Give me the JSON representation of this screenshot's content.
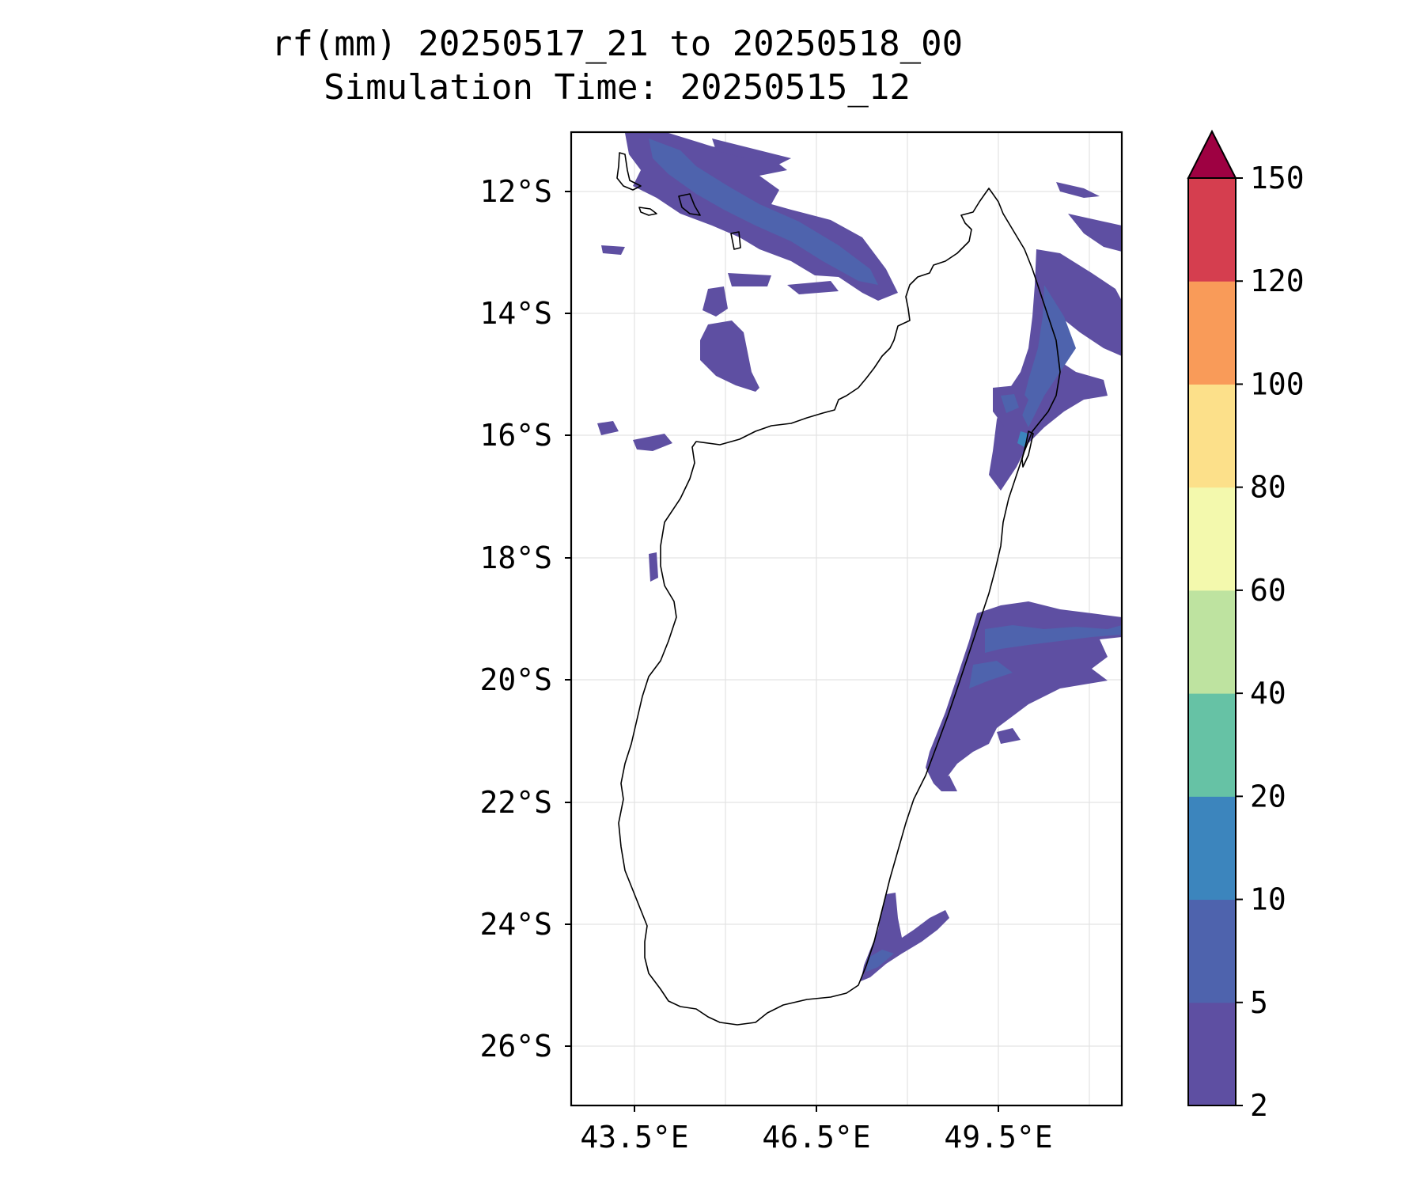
{
  "title": {
    "line1": "rf(mm) 20250517_21 to 20250518_00",
    "line2": "Simulation Time: 20250515_12"
  },
  "map": {
    "lat_labels": [
      "12°S",
      "14°S",
      "16°S",
      "18°S",
      "20°S",
      "22°S",
      "24°S",
      "26°S"
    ],
    "lon_labels": [
      "43.5°E",
      "46.5°E",
      "49.5°E"
    ],
    "extent": {
      "lon_min": 42.45,
      "lon_max": 51.5,
      "lat_min": -27.0,
      "lat_max": -11.1
    },
    "gridlines": true
  },
  "colorbar": {
    "levels": [
      "2",
      "5",
      "10",
      "20",
      "40",
      "60",
      "80",
      "100",
      "120",
      "150"
    ],
    "colors": [
      "#5e4fa2",
      "#4e63ad",
      "#3c85bd",
      "#66c2a5",
      "#bee3a0",
      "#f3f9ad",
      "#fce08a",
      "#f99b59",
      "#d53e4f"
    ],
    "extend_color": "#9e0142"
  },
  "chart_data": {
    "type": "heatmap",
    "variable": "rf(mm)",
    "period": "20250517_21 to 20250518_00",
    "simulation_time": "20250515_12",
    "value_range_shown": [
      2,
      20
    ],
    "dominant_class": "2-5"
  }
}
